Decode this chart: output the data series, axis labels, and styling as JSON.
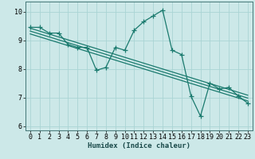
{
  "xlabel": "Humidex (Indice chaleur)",
  "background_color": "#cce8e8",
  "line_color": "#1a7a6e",
  "grid_color": "#aad4d4",
  "xlim": [
    -0.5,
    23.5
  ],
  "ylim": [
    5.85,
    10.35
  ],
  "yticks": [
    6,
    7,
    8,
    9,
    10
  ],
  "xticks": [
    0,
    1,
    2,
    3,
    4,
    5,
    6,
    7,
    8,
    9,
    10,
    11,
    12,
    13,
    14,
    15,
    16,
    17,
    18,
    19,
    20,
    21,
    22,
    23
  ],
  "main_x": [
    0,
    1,
    2,
    3,
    4,
    5,
    6,
    7,
    8,
    9,
    10,
    11,
    12,
    13,
    14,
    15,
    16,
    17,
    18,
    19,
    20,
    21,
    22,
    23
  ],
  "main_y": [
    9.45,
    9.45,
    9.25,
    9.25,
    8.85,
    8.75,
    8.75,
    7.95,
    8.05,
    8.75,
    8.65,
    9.35,
    9.65,
    9.85,
    10.05,
    8.65,
    8.5,
    7.05,
    6.35,
    7.5,
    7.3,
    7.35,
    7.05,
    6.8
  ],
  "trend1_x": [
    0,
    23
  ],
  "trend1_y": [
    9.42,
    7.08
  ],
  "trend2_x": [
    0,
    23
  ],
  "trend2_y": [
    9.32,
    6.98
  ],
  "trend3_x": [
    0,
    23
  ],
  "trend3_y": [
    9.22,
    6.88
  ],
  "linewidth": 0.9,
  "label_fontsize": 6.5,
  "tick_fontsize": 6
}
